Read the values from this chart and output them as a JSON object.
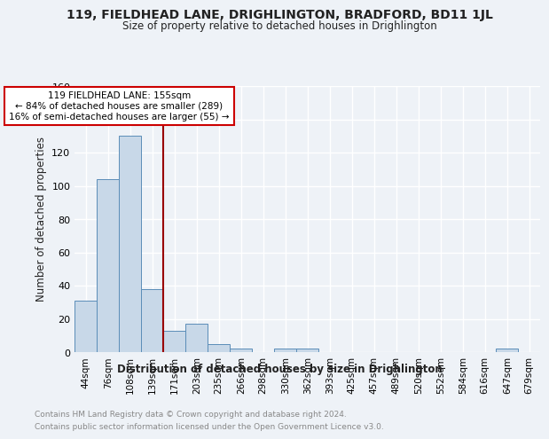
{
  "title": "119, FIELDHEAD LANE, DRIGHLINGTON, BRADFORD, BD11 1JL",
  "subtitle": "Size of property relative to detached houses in Drighlington",
  "xlabel": "Distribution of detached houses by size in Drighlington",
  "ylabel": "Number of detached properties",
  "bin_labels": [
    "44sqm",
    "76sqm",
    "108sqm",
    "139sqm",
    "171sqm",
    "203sqm",
    "235sqm",
    "266sqm",
    "298sqm",
    "330sqm",
    "362sqm",
    "393sqm",
    "425sqm",
    "457sqm",
    "489sqm",
    "520sqm",
    "552sqm",
    "584sqm",
    "616sqm",
    "647sqm",
    "679sqm"
  ],
  "bin_values": [
    31,
    104,
    130,
    38,
    13,
    17,
    5,
    2,
    0,
    2,
    2,
    0,
    0,
    0,
    0,
    0,
    0,
    0,
    0,
    2,
    0
  ],
  "bar_color": "#c8d8e8",
  "bar_edge_color": "#5b8db8",
  "annotation_line1": "119 FIELDHEAD LANE: 155sqm",
  "annotation_line2": "← 84% of detached houses are smaller (289)",
  "annotation_line3": "16% of semi-detached houses are larger (55) →",
  "vline_color": "#990000",
  "vline_x": 3.5,
  "ylim": [
    0,
    160
  ],
  "yticks": [
    0,
    20,
    40,
    60,
    80,
    100,
    120,
    140,
    160
  ],
  "footnote1": "Contains HM Land Registry data © Crown copyright and database right 2024.",
  "footnote2": "Contains public sector information licensed under the Open Government Licence v3.0.",
  "bg_color": "#eef2f7",
  "plot_bg_color": "#eef2f7",
  "grid_color": "#ffffff",
  "title_color": "#222222",
  "ylabel_fontsize": 8.5,
  "tick_fontsize": 8.0,
  "xtick_fontsize": 7.5
}
